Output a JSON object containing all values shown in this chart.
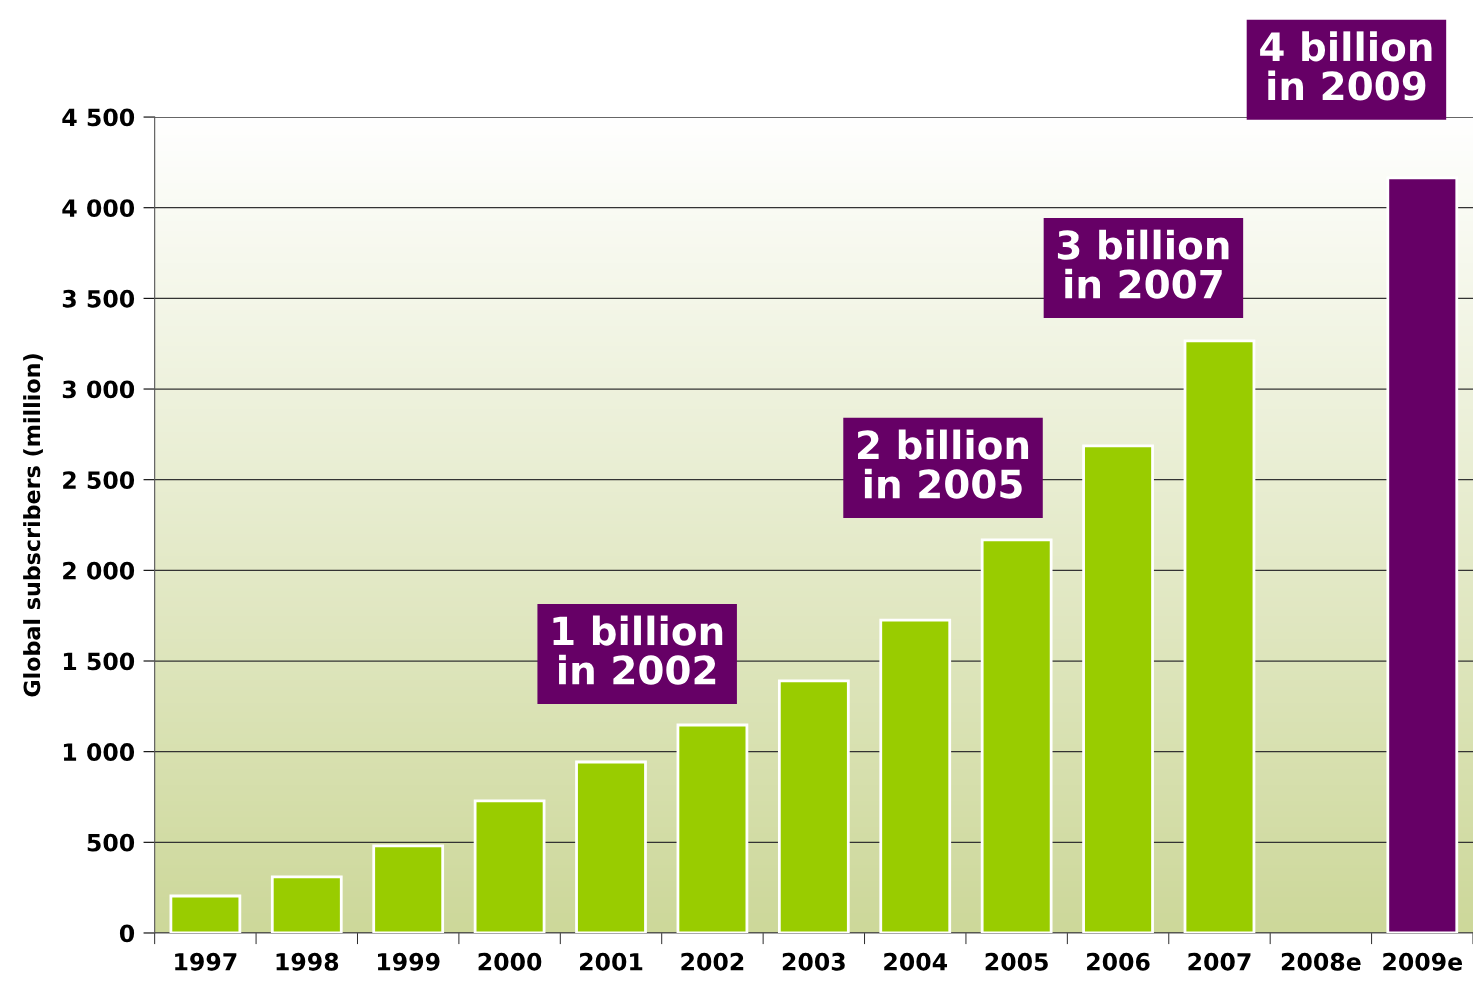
{
  "chart_data": {
    "type": "bar",
    "ylabel": "Global subscribers (million)",
    "categories": [
      "1997",
      "1998",
      "1999",
      "2000",
      "2001",
      "2002",
      "2003",
      "2004",
      "2005",
      "2006",
      "2007",
      "2008e",
      "2009e"
    ],
    "values": [
      204,
      309,
      480,
      728,
      943,
      1147,
      1390,
      1726,
      2168,
      2686,
      3265,
      null,
      4164
    ],
    "colors": [
      "#99cc00",
      "#99cc00",
      "#99cc00",
      "#99cc00",
      "#99cc00",
      "#99cc00",
      "#99cc00",
      "#99cc00",
      "#99cc00",
      "#99cc00",
      "#99cc00",
      "#99cc00",
      "#660066"
    ],
    "ylim": [
      0,
      4500
    ],
    "yticks": [
      0,
      500,
      {
        "value": 1000,
        "label": "1 000"
      },
      {
        "value": 1500,
        "label": "1 500"
      },
      {
        "value": 2000,
        "label": "2 000"
      },
      {
        "value": 2500,
        "label": "2 500"
      },
      {
        "value": 3000,
        "label": "3 000"
      },
      {
        "value": 3500,
        "label": "3 500"
      },
      {
        "value": 4000,
        "label": "4 000"
      },
      {
        "value": 4500,
        "label": "4 500"
      }
    ],
    "grid": "y",
    "annotations": [
      "1 billion\nin 2002",
      "2 billion\nin 2005",
      "3 billion\nin 2007",
      "4 billion\nin 2009"
    ]
  }
}
